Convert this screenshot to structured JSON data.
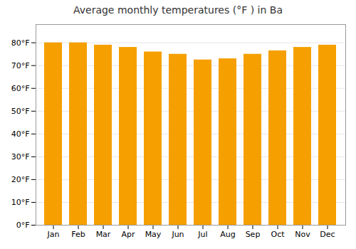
{
  "chart_data": {
    "type": "bar",
    "title": "Average monthly temperatures (°F ) in Ba",
    "categories": [
      "Jan",
      "Feb",
      "Mar",
      "Apr",
      "May",
      "Jun",
      "Jul",
      "Aug",
      "Sep",
      "Oct",
      "Nov",
      "Dec"
    ],
    "values": [
      80,
      80,
      79,
      78,
      76,
      75,
      72.5,
      73,
      75,
      76.5,
      78,
      79
    ],
    "color": "#F5A000",
    "ylim": [
      0,
      88
    ],
    "yticks": [
      {
        "value": 0,
        "label": "0°F"
      },
      {
        "value": 10,
        "label": "10°F"
      },
      {
        "value": 20,
        "label": "20°F"
      },
      {
        "value": 30,
        "label": "30°F"
      },
      {
        "value": 40,
        "label": "40°F"
      },
      {
        "value": 50,
        "label": "50°F"
      },
      {
        "value": 60,
        "label": "60°F"
      },
      {
        "value": 70,
        "label": "70°F"
      },
      {
        "value": 80,
        "label": "80°F"
      }
    ],
    "grid": true
  }
}
